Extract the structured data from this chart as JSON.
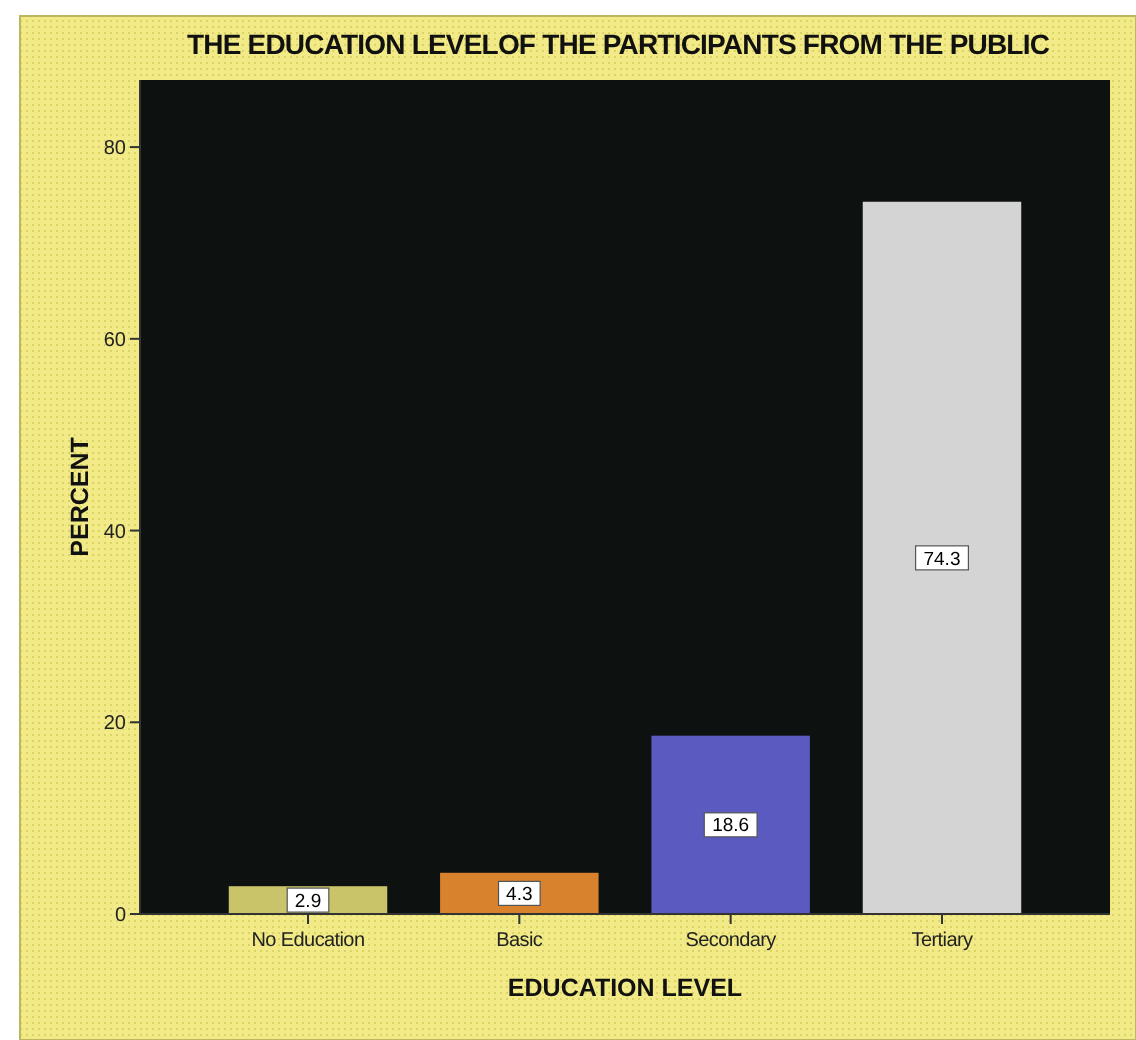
{
  "chart_data": {
    "type": "bar",
    "title": "THE EDUCATION LEVELOF THE PARTICIPANTS FROM THE PUBLIC",
    "xlabel": "EDUCATION LEVEL",
    "ylabel": "PERCENT",
    "categories": [
      "No Education",
      "Basic",
      "Secondary",
      "Tertiary"
    ],
    "values": [
      2.9,
      4.3,
      18.6,
      74.3
    ],
    "colors": [
      "#c9c46a",
      "#d9822e",
      "#5a5ac0",
      "#d4d4d4"
    ],
    "ylim": [
      0,
      87
    ],
    "yticks": [
      0,
      20,
      40,
      60,
      80
    ],
    "grid": false,
    "data_labels": true
  }
}
